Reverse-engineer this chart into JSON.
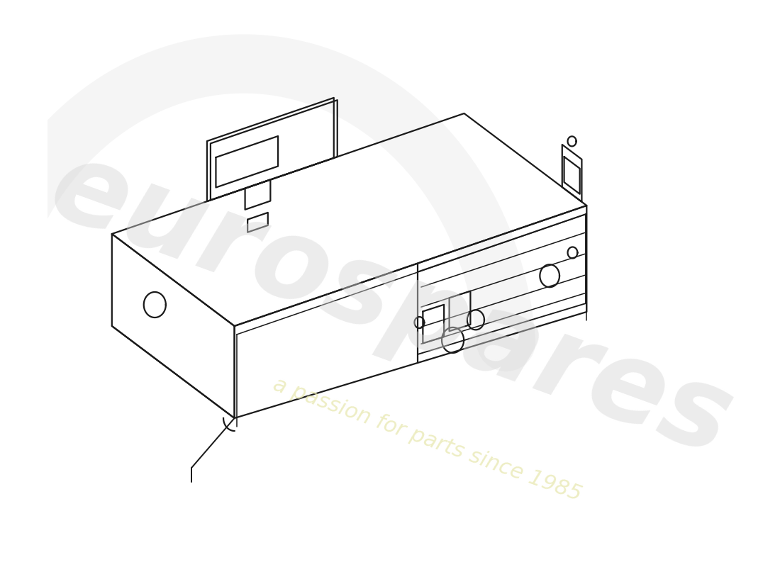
{
  "bg_color": "#ffffff",
  "line_color": "#1a1a1a",
  "line_width": 1.6,
  "figsize": [
    11.0,
    8.0
  ],
  "dpi": 100,
  "watermark_main": "eurospares",
  "watermark_sub": "a passion for parts since 1985",
  "wm_color": "#d8d8d8",
  "wm_yellow": "#e8e8b0"
}
